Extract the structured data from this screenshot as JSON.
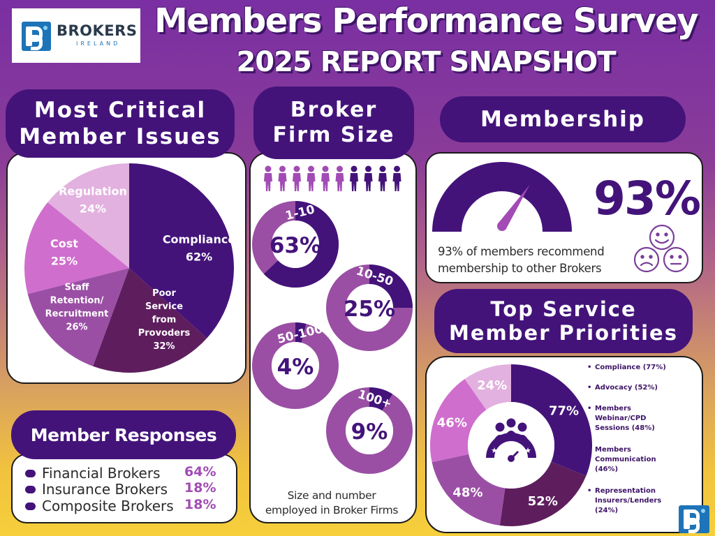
{
  "header": {
    "logo_text": "BROKERS",
    "logo_sub": "IRELAND",
    "title": "Members Performance Survey",
    "subtitle": "2025 REPORT SNAPSHOT"
  },
  "critical_issues": {
    "heading_line1": "Most Critical",
    "heading_line2": "Member Issues",
    "slices": [
      {
        "label_lines": [
          "Compliance",
          "62%"
        ],
        "value": 62,
        "color": "#43137a"
      },
      {
        "label_lines": [
          "Poor",
          "Service",
          "from",
          "Provoders",
          "32%"
        ],
        "value": 32,
        "color": "#5e1e5e"
      },
      {
        "label_lines": [
          "Staff",
          "Retention/",
          "Recruitment",
          "26%"
        ],
        "value": 26,
        "color": "#9a4fa4"
      },
      {
        "label_lines": [
          "Cost",
          "25%"
        ],
        "value": 25,
        "color": "#cf6ecd"
      },
      {
        "label_lines": [
          "Regulation",
          "24%"
        ],
        "value": 24,
        "color": "#e2b1df"
      }
    ]
  },
  "firm_size": {
    "heading_line1": "Broker",
    "heading_line2": "Firm Size",
    "people_icon": "people-row-icon",
    "rings": [
      {
        "label": "1-10",
        "value": "63%",
        "percent": 63
      },
      {
        "label": "10-50",
        "value": "25%",
        "percent": 25
      },
      {
        "label": "50-100",
        "value": "4%",
        "percent": 4
      },
      {
        "label": "100+",
        "value": "9%",
        "percent": 9
      }
    ],
    "caption_line1": "Size and number",
    "caption_line2": "employed in Broker Firms"
  },
  "membership": {
    "heading": "Membership",
    "value": "93%",
    "gauge_percent": 93,
    "text_line1": "93% of members recommend",
    "text_line2": "membership to other Brokers",
    "faces_icon": "faces-icon"
  },
  "priorities": {
    "heading_line1": "Top Service",
    "heading_line2": "Member Priorities",
    "center_icon": "group-rating-icon",
    "slices": [
      {
        "label": "77%",
        "value": 77,
        "color": "#43137a",
        "label_color": "#ffffff"
      },
      {
        "label": "52%",
        "value": 52,
        "color": "#5e1e5e",
        "label_color": "#ffffff"
      },
      {
        "label": "48%",
        "value": 48,
        "color": "#9a4fa4",
        "label_color": "#ffffff"
      },
      {
        "label": "46%",
        "value": 46,
        "color": "#cf6ecd",
        "label_color": "#ffffff"
      },
      {
        "label": "24%",
        "value": 24,
        "color": "#e2b1df",
        "label_color": "#ffffff"
      }
    ],
    "items": [
      {
        "lines": [
          "Compliance (77%)"
        ]
      },
      {
        "lines": [
          "Advocacy (52%)"
        ]
      },
      {
        "lines": [
          "Members",
          "Webinar/CPD",
          "Sessions (48%)"
        ]
      },
      {
        "lines": [
          "Members",
          "Communication",
          "(46%)"
        ]
      },
      {
        "lines": [
          "Representation",
          "Insurers/Lenders",
          "(24%)"
        ]
      }
    ]
  },
  "responses": {
    "heading": "Member Responses",
    "rows": [
      {
        "label": "Financial Brokers",
        "value": "64%"
      },
      {
        "label": "Insurance Brokers",
        "value": "18%"
      },
      {
        "label": "Composite Brokers",
        "value": "18%"
      }
    ]
  },
  "colors": {
    "dark_purple": "#43137a",
    "plum": "#5e1e5e",
    "mid_purple": "#9a4fa4",
    "pink": "#cf6ecd",
    "light_pink": "#e2b1df",
    "accent": "#a24bb5"
  }
}
